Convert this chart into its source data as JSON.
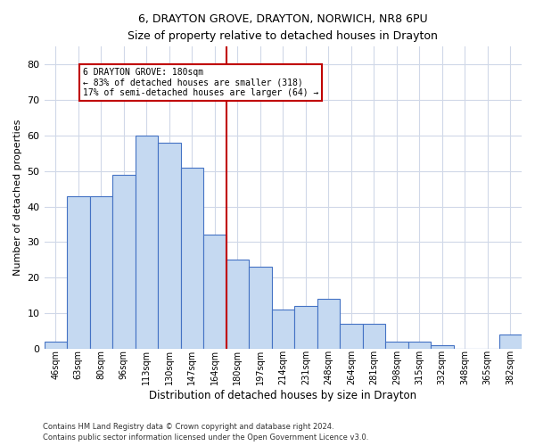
{
  "title": "6, DRAYTON GROVE, DRAYTON, NORWICH, NR8 6PU",
  "subtitle": "Size of property relative to detached houses in Drayton",
  "xlabel": "Distribution of detached houses by size in Drayton",
  "ylabel": "Number of detached properties",
  "categories": [
    "46sqm",
    "63sqm",
    "80sqm",
    "96sqm",
    "113sqm",
    "130sqm",
    "147sqm",
    "164sqm",
    "180sqm",
    "197sqm",
    "214sqm",
    "231sqm",
    "248sqm",
    "264sqm",
    "281sqm",
    "298sqm",
    "315sqm",
    "332sqm",
    "348sqm",
    "365sqm",
    "382sqm"
  ],
  "values": [
    2,
    43,
    43,
    49,
    60,
    58,
    51,
    32,
    25,
    23,
    11,
    12,
    14,
    7,
    7,
    2,
    2,
    1,
    0,
    0,
    4
  ],
  "bar_color": "#c5d9f1",
  "bar_edge_color": "#4472c4",
  "highlight_index": 8,
  "vline_color": "#c00000",
  "annotation_text": "6 DRAYTON GROVE: 180sqm\n← 83% of detached houses are smaller (318)\n17% of semi-detached houses are larger (64) →",
  "annotation_box_color": "#ffffff",
  "annotation_box_edge": "#c00000",
  "ylim": [
    0,
    85
  ],
  "yticks": [
    0,
    10,
    20,
    30,
    40,
    50,
    60,
    70,
    80
  ],
  "footer1": "Contains HM Land Registry data © Crown copyright and database right 2024.",
  "footer2": "Contains public sector information licensed under the Open Government Licence v3.0.",
  "background_color": "#ffffff",
  "grid_color": "#d0d8e8"
}
